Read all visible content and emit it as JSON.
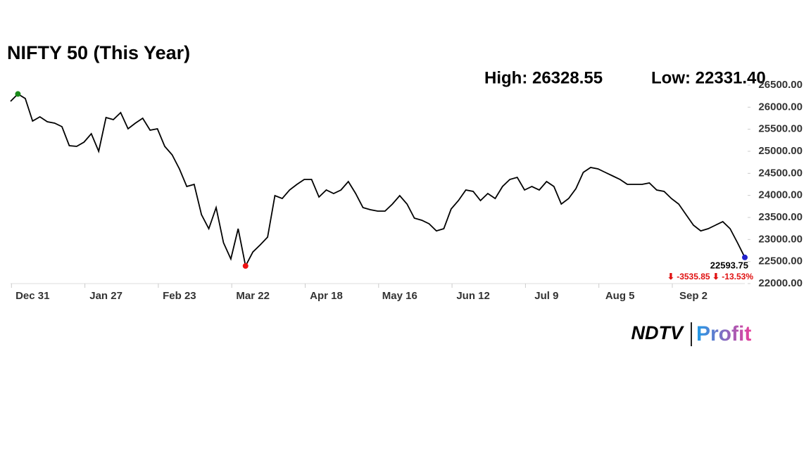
{
  "chart_data": {
    "type": "line",
    "title": "NIFTY 50 (This Year)",
    "high_label": "High: 26328.55",
    "low_label": "Low: 22331.40",
    "end_label": "22593.75",
    "change_label": "⬇ -3535.85 ⬇ -13.53%",
    "logo": {
      "left": "NDTV",
      "right": "Profit"
    },
    "categories": [
      null,
      null,
      null,
      "Dec 31",
      null,
      null,
      null,
      null,
      null,
      null,
      null,
      null,
      null,
      "Jan 27",
      null,
      null,
      null,
      null,
      null,
      null,
      null,
      null,
      null,
      "Feb 23",
      null,
      null,
      null,
      null,
      null,
      null,
      null,
      null,
      null,
      "Mar 22",
      null,
      null,
      null,
      null,
      null,
      null,
      null,
      null,
      null,
      "Apr 18",
      null,
      null,
      null,
      null,
      null,
      null,
      null,
      null,
      null,
      "May 16",
      null,
      null,
      null,
      null,
      null,
      null,
      null,
      null,
      null,
      "Jun 12",
      null,
      null,
      null,
      null,
      null,
      null,
      null,
      null,
      null,
      "Jul 9",
      null,
      null,
      null,
      null,
      null,
      null,
      null,
      null,
      null,
      "Aug 5",
      null,
      null,
      null,
      null,
      null,
      null,
      null,
      null,
      null,
      "Sep 2",
      null,
      null,
      null,
      null,
      null,
      null,
      null
    ],
    "series": [
      {
        "color": "#000000",
        "values": [
          26133,
          26300,
          26197,
          25686,
          25782,
          25670,
          25638,
          25558,
          25127,
          25111,
          25207,
          25399,
          25000,
          25766,
          25718,
          25878,
          25510,
          25638,
          25750,
          25479,
          25510,
          25111,
          24920,
          24600,
          24202,
          24250,
          23563,
          23244,
          23723,
          22925,
          22558,
          23244,
          22400,
          22717,
          22877,
          23053,
          23994,
          23930,
          24122,
          24250,
          24361,
          24361,
          23962,
          24122,
          24042,
          24122,
          24314,
          24042,
          23723,
          23675,
          23643,
          23643,
          23803,
          23994,
          23803,
          23484,
          23436,
          23356,
          23196,
          23244,
          23691,
          23883,
          24122,
          24090,
          23883,
          24042,
          23930,
          24202,
          24361,
          24409,
          24122,
          24202,
          24122,
          24314,
          24202,
          23803,
          23930,
          24154,
          24521,
          24633,
          24601,
          24521,
          24441,
          24361,
          24250,
          24250,
          24250,
          24282,
          24122,
          24090,
          23930,
          23803,
          23563,
          23324,
          23196,
          23244,
          23324,
          23404,
          23244,
          22925,
          22593.75
        ]
      }
    ],
    "marker_colors": {
      "high": "#1a8a1a",
      "low": "#ee1111",
      "end": "#2222cc"
    },
    "change_color": "#e01010",
    "ylim": [
      22000,
      26500
    ],
    "yticks": [
      {
        "value": 22000,
        "label": "22000.00"
      },
      {
        "value": 22500,
        "label": "22500.00"
      },
      {
        "value": 23000,
        "label": "23000.00"
      },
      {
        "value": 23500,
        "label": "23500.00"
      },
      {
        "value": 24000,
        "label": "24000.00"
      },
      {
        "value": 24500,
        "label": "24500.00"
      },
      {
        "value": 25000,
        "label": "25000.00"
      },
      {
        "value": 25500,
        "label": "25500.00"
      },
      {
        "value": 26000,
        "label": "26000.00"
      },
      {
        "value": 26500,
        "label": "26500.00"
      }
    ]
  }
}
